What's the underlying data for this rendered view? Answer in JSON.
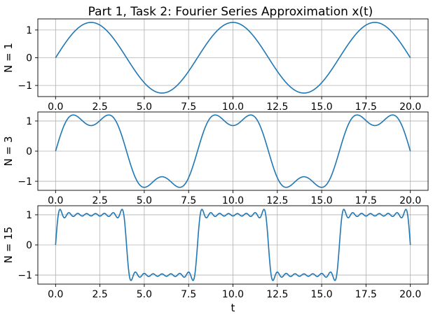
{
  "title": "Part 1, Task 2: Fourier Series Approximation x(t)",
  "colors": {
    "line": "#1f77b4",
    "grid": "#b0b0b0",
    "axes": "#000000"
  },
  "chart_data": [
    {
      "type": "line",
      "ylabel": "N = 1",
      "xlabel": "",
      "harmonics": 1,
      "period": 8,
      "xlim": [
        -1,
        21
      ],
      "ylim": [
        -1.4,
        1.4
      ],
      "x_ticks": [
        0,
        2.5,
        5,
        7.5,
        10,
        12.5,
        15,
        17.5,
        20
      ],
      "x_tick_labels": [
        "0.0",
        "2.5",
        "5.0",
        "7.5",
        "10.0",
        "12.5",
        "15.0",
        "17.5",
        "20.0"
      ],
      "y_ticks": [
        -1,
        0,
        1
      ],
      "y_tick_labels": [
        "−1",
        "0",
        "1"
      ],
      "grid": true,
      "x": [
        0,
        2,
        4,
        6,
        8,
        10,
        12,
        14,
        16,
        18,
        20
      ],
      "y": [
        0,
        1.27,
        0,
        -1.27,
        0,
        1.27,
        0,
        -1.27,
        0,
        1.27,
        0
      ]
    },
    {
      "type": "line",
      "ylabel": "N = 3",
      "xlabel": "",
      "harmonics": 3,
      "period": 8,
      "xlim": [
        -1,
        21
      ],
      "ylim": [
        -1.3,
        1.3
      ],
      "x_ticks": [
        0,
        2.5,
        5,
        7.5,
        10,
        12.5,
        15,
        17.5,
        20
      ],
      "x_tick_labels": [
        "0.0",
        "2.5",
        "5.0",
        "7.5",
        "10.0",
        "12.5",
        "15.0",
        "17.5",
        "20.0"
      ],
      "y_ticks": [
        -1,
        0,
        1
      ],
      "y_tick_labels": [
        "−1",
        "0",
        "1"
      ],
      "grid": true,
      "x": [
        0,
        1,
        2,
        3,
        4,
        5,
        6,
        7,
        8,
        9,
        10,
        11,
        12,
        13,
        14,
        15,
        16,
        17,
        18,
        19,
        20
      ],
      "y": [
        0,
        1.2,
        0.85,
        1.2,
        0,
        -1.2,
        -0.85,
        -1.2,
        0,
        1.2,
        0.85,
        1.2,
        0,
        -1.2,
        -0.85,
        -1.2,
        0,
        1.2,
        0.85,
        1.2,
        0
      ]
    },
    {
      "type": "line",
      "ylabel": "N = 15",
      "xlabel": "t",
      "harmonics": 15,
      "period": 8,
      "xlim": [
        -1,
        21
      ],
      "ylim": [
        -1.3,
        1.3
      ],
      "x_ticks": [
        0,
        2.5,
        5,
        7.5,
        10,
        12.5,
        15,
        17.5,
        20
      ],
      "x_tick_labels": [
        "0.0",
        "2.5",
        "5.0",
        "7.5",
        "10.0",
        "12.5",
        "15.0",
        "17.5",
        "20.0"
      ],
      "y_ticks": [
        -1,
        0,
        1
      ],
      "y_tick_labels": [
        "−1",
        "0",
        "1"
      ],
      "grid": true,
      "x": [
        0,
        0.2,
        2,
        3.8,
        4,
        4.2,
        6,
        7.8,
        8,
        8.2,
        10,
        11.8,
        12,
        12.2,
        14,
        15.8,
        16,
        16.2,
        18,
        19.8,
        20
      ],
      "y": [
        0,
        1.18,
        1.0,
        1.18,
        0,
        -1.18,
        -1.0,
        -1.18,
        0,
        1.18,
        1.0,
        1.18,
        0,
        -1.18,
        -1.0,
        -1.18,
        0,
        1.18,
        1.0,
        1.18,
        0
      ]
    }
  ]
}
